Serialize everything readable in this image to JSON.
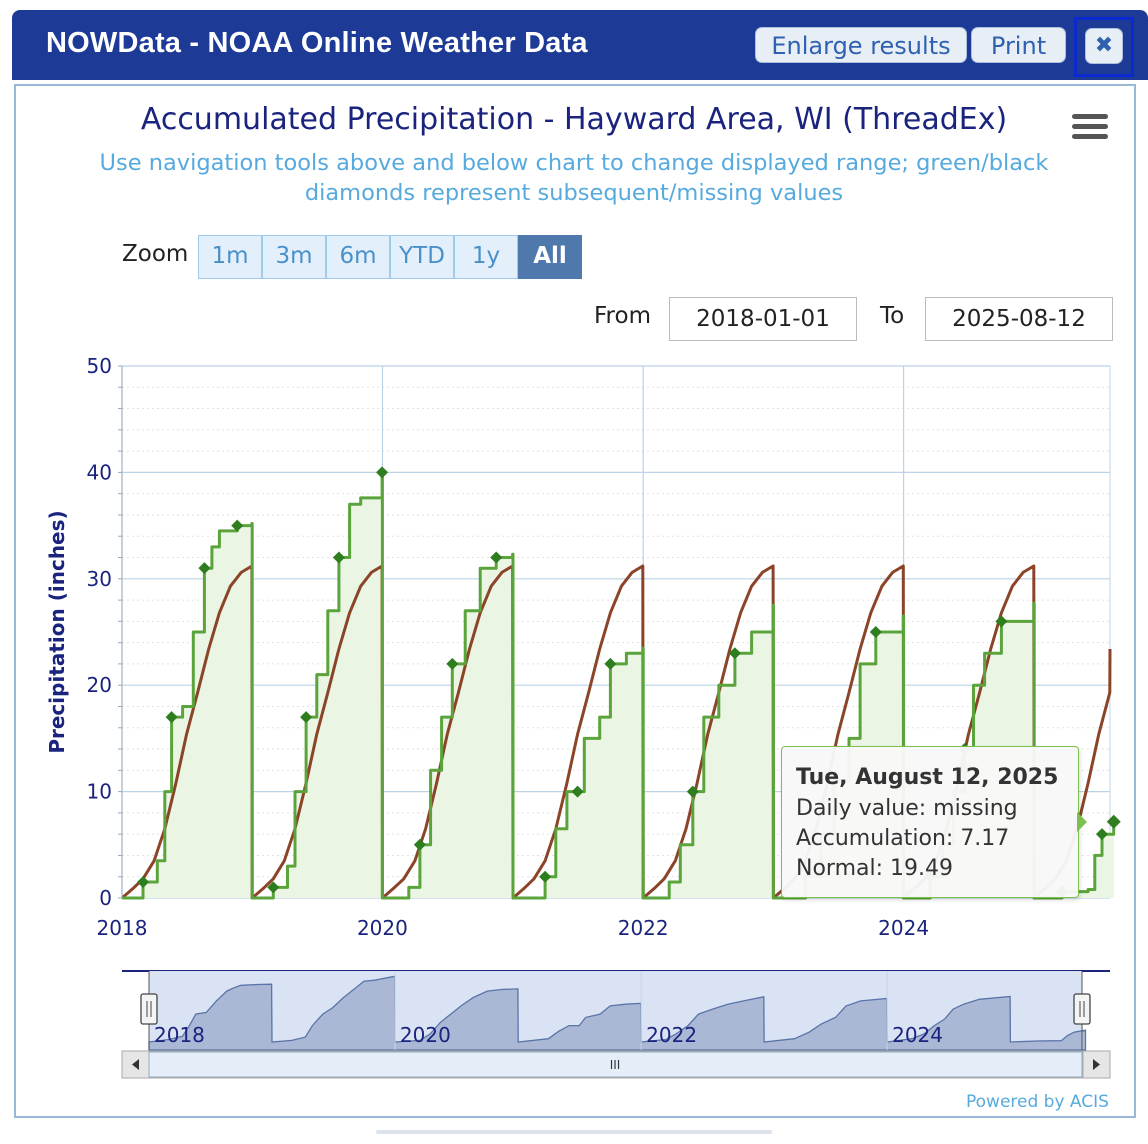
{
  "window": {
    "title": "NOWData - NOAA Online Weather Data",
    "enlarge_label": "Enlarge results",
    "print_label": "Print",
    "close_glyph": "✖"
  },
  "colors": {
    "titlebar": "#1c3a96",
    "observed": "#5ba43c",
    "normal": "#8b4428",
    "area_fill": "#eaf5e4",
    "diamond": "#2e7d1e",
    "navigator_fill": "#9aa9cc"
  },
  "chart": {
    "title": "Accumulated Precipitation - Hayward Area, WI (ThreadEx)",
    "subtitle": "Use navigation tools above and below chart to change displayed range; green/black diamonds represent subsequent/missing values",
    "ylabel": "Precipitation (inches)"
  },
  "zoom": {
    "label": "Zoom",
    "buttons": [
      {
        "label": "1m",
        "active": false
      },
      {
        "label": "3m",
        "active": false
      },
      {
        "label": "6m",
        "active": false
      },
      {
        "label": "YTD",
        "active": false
      },
      {
        "label": "1y",
        "active": false
      },
      {
        "label": "All",
        "active": true
      }
    ]
  },
  "range": {
    "from_label": "From",
    "from_value": "2018-01-01",
    "to_label": "To",
    "to_value": "2025-08-12"
  },
  "tooltip": {
    "date": "Tue, August 12, 2025",
    "daily": "Daily value: missing",
    "accumulation": "Accumulation: 7.17",
    "normal": "Normal: 19.49"
  },
  "navigator": {
    "labels": [
      "2018",
      "2020",
      "2022",
      "2024"
    ],
    "scroll_grip": "III"
  },
  "footer": {
    "powered": "Powered by ACIS"
  },
  "chart_data": {
    "type": "area",
    "x_range": [
      "2018-01-01",
      "2025-08-12"
    ],
    "ylim": [
      0,
      50
    ],
    "y_ticks": [
      0,
      10,
      20,
      30,
      40,
      50
    ],
    "x_ticks": [
      "2018",
      "2020",
      "2022",
      "2024"
    ],
    "grid": true,
    "legend": "none",
    "series": [
      {
        "name": "Accumulation",
        "style": "stepped line with shaded area",
        "points": [
          [
            "2018-01-01",
            0
          ],
          [
            "2018-03-01",
            1.5
          ],
          [
            "2018-04-10",
            3.5
          ],
          [
            "2018-05-01",
            10
          ],
          [
            "2018-05-20",
            17
          ],
          [
            "2018-06-20",
            18
          ],
          [
            "2018-07-20",
            25
          ],
          [
            "2018-08-20",
            31
          ],
          [
            "2018-09-10",
            33
          ],
          [
            "2018-10-01",
            34.5
          ],
          [
            "2018-11-20",
            35
          ],
          [
            "2018-12-31",
            35.2
          ],
          [
            "2019-01-01",
            0
          ],
          [
            "2019-03-01",
            1
          ],
          [
            "2019-04-10",
            3
          ],
          [
            "2019-05-01",
            10
          ],
          [
            "2019-06-01",
            17
          ],
          [
            "2019-07-01",
            21
          ],
          [
            "2019-08-01",
            27
          ],
          [
            "2019-09-01",
            32
          ],
          [
            "2019-10-01",
            37
          ],
          [
            "2019-11-01",
            37.6
          ],
          [
            "2019-12-31",
            40
          ],
          [
            "2020-01-01",
            0
          ],
          [
            "2020-03-15",
            1
          ],
          [
            "2020-04-15",
            5
          ],
          [
            "2020-05-15",
            12
          ],
          [
            "2020-06-15",
            17
          ],
          [
            "2020-07-15",
            22
          ],
          [
            "2020-08-20",
            27
          ],
          [
            "2020-10-01",
            31
          ],
          [
            "2020-11-15",
            32
          ],
          [
            "2020-12-31",
            32.3
          ],
          [
            "2021-01-01",
            0
          ],
          [
            "2021-04-01",
            2
          ],
          [
            "2021-05-01",
            6.5
          ],
          [
            "2021-06-01",
            10
          ],
          [
            "2021-07-01",
            10
          ],
          [
            "2021-07-20",
            15
          ],
          [
            "2021-09-01",
            17
          ],
          [
            "2021-10-01",
            22
          ],
          [
            "2021-11-15",
            23
          ],
          [
            "2021-12-31",
            23.5
          ],
          [
            "2022-01-01",
            0
          ],
          [
            "2022-03-15",
            1.5
          ],
          [
            "2022-04-15",
            5
          ],
          [
            "2022-05-20",
            10
          ],
          [
            "2022-06-20",
            17
          ],
          [
            "2022-08-01",
            20
          ],
          [
            "2022-09-15",
            23
          ],
          [
            "2022-11-01",
            25
          ],
          [
            "2022-12-31",
            27.5
          ],
          [
            "2023-01-01",
            0
          ],
          [
            "2023-04-01",
            2
          ],
          [
            "2023-05-15",
            6
          ],
          [
            "2023-06-20",
            11
          ],
          [
            "2023-08-01",
            15
          ],
          [
            "2023-09-01",
            22
          ],
          [
            "2023-10-15",
            25
          ],
          [
            "2023-12-31",
            26.5
          ],
          [
            "2024-01-01",
            0
          ],
          [
            "2024-03-15",
            2
          ],
          [
            "2024-04-20",
            5
          ],
          [
            "2024-05-20",
            10
          ],
          [
            "2024-06-20",
            14
          ],
          [
            "2024-07-15",
            20
          ],
          [
            "2024-08-15",
            23
          ],
          [
            "2024-10-01",
            26
          ],
          [
            "2024-12-31",
            27.7
          ],
          [
            "2025-01-01",
            0
          ],
          [
            "2025-03-20",
            0.6
          ],
          [
            "2025-06-01",
            0.8
          ],
          [
            "2025-06-20",
            4
          ],
          [
            "2025-07-10",
            6
          ],
          [
            "2025-08-12",
            7.17
          ]
        ]
      },
      {
        "name": "Normal",
        "style": "smooth line, resets yearly",
        "annual_total": 31.2,
        "points": [
          [
            "Jan-01",
            0
          ],
          [
            "Feb-01",
            0.9
          ],
          [
            "Mar-01",
            1.8
          ],
          [
            "Apr-01",
            3.5
          ],
          [
            "May-01",
            6.5
          ],
          [
            "Jun-01",
            10.8
          ],
          [
            "Jul-01",
            15.4
          ],
          [
            "Aug-01",
            19.3
          ],
          [
            "Sep-01",
            23.4
          ],
          [
            "Oct-01",
            26.8
          ],
          [
            "Nov-01",
            29.3
          ],
          [
            "Dec-01",
            30.6
          ],
          [
            "Dec-31",
            31.2
          ]
        ]
      }
    ]
  }
}
